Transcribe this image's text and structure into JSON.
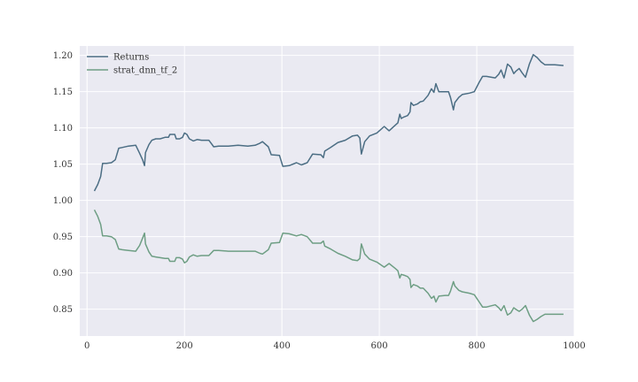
{
  "chart_data": {
    "type": "line",
    "title": "",
    "xlabel": "",
    "ylabel": "",
    "xlim": [
      -15,
      1000
    ],
    "ylim": [
      0.813,
      1.213
    ],
    "xticks": [
      0,
      200,
      400,
      600,
      800,
      1000
    ],
    "yticks": [
      0.85,
      0.9,
      0.95,
      1.0,
      1.05,
      1.1,
      1.15,
      1.2
    ],
    "xtick_labels": [
      "0",
      "200",
      "400",
      "600",
      "800",
      "1000"
    ],
    "ytick_labels": [
      "0.85",
      "0.90",
      "0.95",
      "1.00",
      "1.05",
      "1.10",
      "1.15",
      "1.20"
    ],
    "grid": true,
    "legend_position": "top-left",
    "background": "#eaeaf2",
    "series": [
      {
        "name": "Returns",
        "color": "#4c6e84",
        "points": [
          [
            15,
            1.013
          ],
          [
            22,
            1.022
          ],
          [
            28,
            1.033
          ],
          [
            32,
            1.051
          ],
          [
            40,
            1.051
          ],
          [
            50,
            1.052
          ],
          [
            58,
            1.056
          ],
          [
            65,
            1.072
          ],
          [
            72,
            1.073
          ],
          [
            85,
            1.075
          ],
          [
            100,
            1.076
          ],
          [
            108,
            1.065
          ],
          [
            114,
            1.056
          ],
          [
            118,
            1.048
          ],
          [
            120,
            1.066
          ],
          [
            127,
            1.077
          ],
          [
            133,
            1.083
          ],
          [
            141,
            1.085
          ],
          [
            150,
            1.085
          ],
          [
            160,
            1.087
          ],
          [
            167,
            1.087
          ],
          [
            170,
            1.091
          ],
          [
            180,
            1.091
          ],
          [
            183,
            1.085
          ],
          [
            190,
            1.085
          ],
          [
            196,
            1.087
          ],
          [
            200,
            1.093
          ],
          [
            205,
            1.091
          ],
          [
            210,
            1.085
          ],
          [
            218,
            1.082
          ],
          [
            226,
            1.084
          ],
          [
            235,
            1.083
          ],
          [
            250,
            1.083
          ],
          [
            260,
            1.074
          ],
          [
            270,
            1.075
          ],
          [
            290,
            1.075
          ],
          [
            310,
            1.076
          ],
          [
            330,
            1.075
          ],
          [
            345,
            1.076
          ],
          [
            355,
            1.079
          ],
          [
            360,
            1.081
          ],
          [
            372,
            1.074
          ],
          [
            378,
            1.063
          ],
          [
            395,
            1.062
          ],
          [
            402,
            1.047
          ],
          [
            415,
            1.048
          ],
          [
            430,
            1.052
          ],
          [
            440,
            1.049
          ],
          [
            452,
            1.052
          ],
          [
            463,
            1.064
          ],
          [
            480,
            1.063
          ],
          [
            485,
            1.059
          ],
          [
            488,
            1.068
          ],
          [
            500,
            1.073
          ],
          [
            515,
            1.08
          ],
          [
            530,
            1.083
          ],
          [
            545,
            1.089
          ],
          [
            555,
            1.09
          ],
          [
            560,
            1.086
          ],
          [
            563,
            1.064
          ],
          [
            570,
            1.081
          ],
          [
            580,
            1.089
          ],
          [
            595,
            1.093
          ],
          [
            610,
            1.102
          ],
          [
            620,
            1.096
          ],
          [
            633,
            1.104
          ],
          [
            638,
            1.107
          ],
          [
            642,
            1.119
          ],
          [
            645,
            1.113
          ],
          [
            650,
            1.115
          ],
          [
            658,
            1.117
          ],
          [
            663,
            1.122
          ],
          [
            665,
            1.135
          ],
          [
            670,
            1.131
          ],
          [
            678,
            1.133
          ],
          [
            684,
            1.136
          ],
          [
            690,
            1.137
          ],
          [
            700,
            1.145
          ],
          [
            707,
            1.154
          ],
          [
            712,
            1.149
          ],
          [
            716,
            1.161
          ],
          [
            722,
            1.15
          ],
          [
            735,
            1.15
          ],
          [
            742,
            1.15
          ],
          [
            746,
            1.142
          ],
          [
            752,
            1.125
          ],
          [
            755,
            1.135
          ],
          [
            763,
            1.142
          ],
          [
            770,
            1.146
          ],
          [
            785,
            1.148
          ],
          [
            795,
            1.15
          ],
          [
            805,
            1.163
          ],
          [
            812,
            1.171
          ],
          [
            820,
            1.171
          ],
          [
            838,
            1.169
          ],
          [
            845,
            1.174
          ],
          [
            850,
            1.18
          ],
          [
            856,
            1.169
          ],
          [
            863,
            1.188
          ],
          [
            870,
            1.184
          ],
          [
            876,
            1.175
          ],
          [
            880,
            1.178
          ],
          [
            887,
            1.182
          ],
          [
            893,
            1.176
          ],
          [
            900,
            1.17
          ],
          [
            908,
            1.188
          ],
          [
            916,
            1.201
          ],
          [
            924,
            1.197
          ],
          [
            932,
            1.191
          ],
          [
            940,
            1.187
          ],
          [
            960,
            1.187
          ],
          [
            978,
            1.186
          ]
        ]
      },
      {
        "name": "strat_dnn_tf_2",
        "color": "#6e9e84",
        "points": [
          [
            15,
            0.987
          ],
          [
            22,
            0.978
          ],
          [
            28,
            0.967
          ],
          [
            32,
            0.951
          ],
          [
            40,
            0.951
          ],
          [
            50,
            0.95
          ],
          [
            58,
            0.946
          ],
          [
            65,
            0.933
          ],
          [
            72,
            0.932
          ],
          [
            85,
            0.931
          ],
          [
            100,
            0.93
          ],
          [
            108,
            0.938
          ],
          [
            114,
            0.948
          ],
          [
            118,
            0.955
          ],
          [
            120,
            0.94
          ],
          [
            127,
            0.929
          ],
          [
            133,
            0.923
          ],
          [
            141,
            0.922
          ],
          [
            150,
            0.921
          ],
          [
            160,
            0.92
          ],
          [
            167,
            0.92
          ],
          [
            170,
            0.916
          ],
          [
            180,
            0.916
          ],
          [
            183,
            0.921
          ],
          [
            190,
            0.921
          ],
          [
            196,
            0.919
          ],
          [
            200,
            0.914
          ],
          [
            205,
            0.916
          ],
          [
            210,
            0.922
          ],
          [
            218,
            0.925
          ],
          [
            226,
            0.923
          ],
          [
            235,
            0.924
          ],
          [
            250,
            0.924
          ],
          [
            260,
            0.931
          ],
          [
            270,
            0.931
          ],
          [
            290,
            0.93
          ],
          [
            310,
            0.93
          ],
          [
            330,
            0.93
          ],
          [
            345,
            0.93
          ],
          [
            355,
            0.927
          ],
          [
            360,
            0.926
          ],
          [
            372,
            0.932
          ],
          [
            378,
            0.941
          ],
          [
            395,
            0.942
          ],
          [
            402,
            0.955
          ],
          [
            415,
            0.954
          ],
          [
            430,
            0.951
          ],
          [
            440,
            0.953
          ],
          [
            452,
            0.95
          ],
          [
            463,
            0.941
          ],
          [
            480,
            0.941
          ],
          [
            485,
            0.944
          ],
          [
            488,
            0.937
          ],
          [
            500,
            0.933
          ],
          [
            515,
            0.927
          ],
          [
            530,
            0.923
          ],
          [
            545,
            0.918
          ],
          [
            555,
            0.917
          ],
          [
            560,
            0.92
          ],
          [
            563,
            0.94
          ],
          [
            570,
            0.926
          ],
          [
            580,
            0.919
          ],
          [
            595,
            0.915
          ],
          [
            610,
            0.908
          ],
          [
            620,
            0.913
          ],
          [
            633,
            0.906
          ],
          [
            638,
            0.903
          ],
          [
            642,
            0.893
          ],
          [
            645,
            0.898
          ],
          [
            650,
            0.897
          ],
          [
            658,
            0.895
          ],
          [
            663,
            0.891
          ],
          [
            665,
            0.88
          ],
          [
            670,
            0.884
          ],
          [
            678,
            0.882
          ],
          [
            684,
            0.879
          ],
          [
            690,
            0.879
          ],
          [
            700,
            0.872
          ],
          [
            707,
            0.865
          ],
          [
            712,
            0.868
          ],
          [
            716,
            0.86
          ],
          [
            722,
            0.868
          ],
          [
            735,
            0.869
          ],
          [
            742,
            0.869
          ],
          [
            746,
            0.875
          ],
          [
            752,
            0.888
          ],
          [
            755,
            0.882
          ],
          [
            763,
            0.876
          ],
          [
            770,
            0.874
          ],
          [
            785,
            0.872
          ],
          [
            795,
            0.87
          ],
          [
            805,
            0.86
          ],
          [
            812,
            0.853
          ],
          [
            820,
            0.853
          ],
          [
            838,
            0.856
          ],
          [
            845,
            0.852
          ],
          [
            850,
            0.848
          ],
          [
            856,
            0.855
          ],
          [
            863,
            0.842
          ],
          [
            870,
            0.845
          ],
          [
            876,
            0.852
          ],
          [
            880,
            0.85
          ],
          [
            887,
            0.847
          ],
          [
            893,
            0.85
          ],
          [
            900,
            0.855
          ],
          [
            908,
            0.842
          ],
          [
            916,
            0.833
          ],
          [
            924,
            0.836
          ],
          [
            932,
            0.84
          ],
          [
            940,
            0.843
          ],
          [
            960,
            0.843
          ],
          [
            978,
            0.843
          ]
        ]
      }
    ]
  }
}
